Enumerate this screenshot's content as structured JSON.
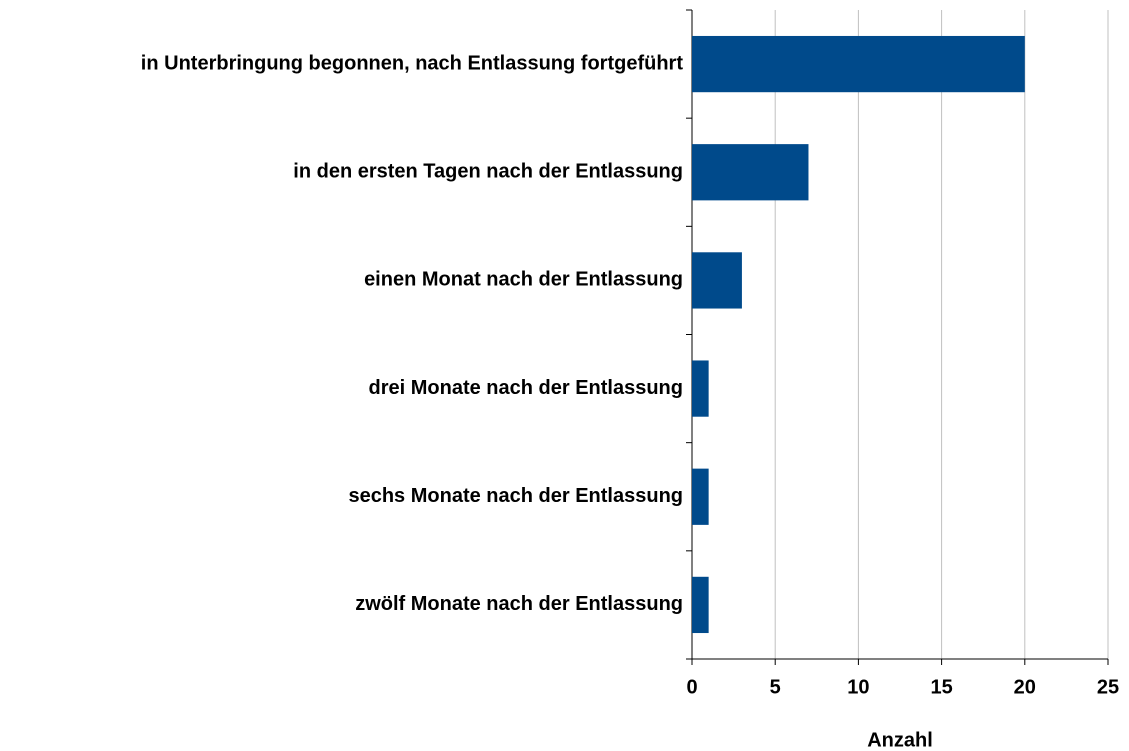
{
  "chart_data": {
    "type": "barh",
    "categories": [
      "in Unterbringung begonnen, nach Entlassung fortgeführt",
      "in den ersten Tagen nach der Entlassung",
      "einen Monat nach der Entlassung",
      "drei Monate nach der Entlassung",
      "sechs Monate nach der Entlassung",
      "zwölf Monate nach der Entlassung"
    ],
    "values": [
      20,
      7,
      3,
      1,
      1,
      1
    ],
    "color": "#004a8b",
    "xlabel": "Anzahl",
    "xlim": [
      0,
      25
    ],
    "xticks": [
      0,
      5,
      10,
      15,
      20,
      25
    ],
    "grid": true
  }
}
